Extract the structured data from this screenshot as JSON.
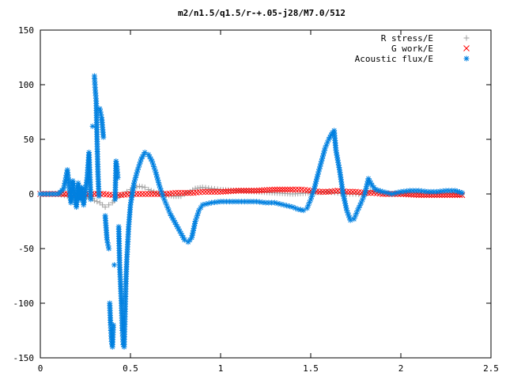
{
  "chart_data": {
    "type": "scatter",
    "title": "m2/n1.5/q1.5/r-+.05-j28/M7.0/512",
    "xlabel": "",
    "ylabel": "",
    "xlim": [
      0,
      2.5
    ],
    "ylim": [
      -150,
      150
    ],
    "x_ticks": [
      "0",
      "0.5",
      "1",
      "1.5",
      "2",
      "2.5"
    ],
    "y_ticks": [
      "150",
      "100",
      "50",
      "0",
      "-50",
      "-100",
      "-150"
    ],
    "grid": false,
    "legend_position": "top-right",
    "series": [
      {
        "name": "R stress/E",
        "marker": "+",
        "color": "#a0a0a0",
        "points": [
          [
            0.0,
            0
          ],
          [
            0.05,
            0
          ],
          [
            0.1,
            0
          ],
          [
            0.15,
            -2
          ],
          [
            0.2,
            -3
          ],
          [
            0.25,
            -4
          ],
          [
            0.28,
            -2
          ],
          [
            0.3,
            -6
          ],
          [
            0.33,
            -8
          ],
          [
            0.36,
            -12
          ],
          [
            0.38,
            -10
          ],
          [
            0.4,
            -8
          ],
          [
            0.42,
            -4
          ],
          [
            0.44,
            -2
          ],
          [
            0.46,
            0
          ],
          [
            0.48,
            2
          ],
          [
            0.5,
            4
          ],
          [
            0.52,
            6
          ],
          [
            0.55,
            7
          ],
          [
            0.58,
            6
          ],
          [
            0.6,
            4
          ],
          [
            0.63,
            2
          ],
          [
            0.66,
            0
          ],
          [
            0.7,
            -1
          ],
          [
            0.74,
            -2
          ],
          [
            0.78,
            -2
          ],
          [
            0.8,
            0
          ],
          [
            0.83,
            2
          ],
          [
            0.86,
            5
          ],
          [
            0.9,
            6
          ],
          [
            0.95,
            5
          ],
          [
            1.0,
            4
          ],
          [
            1.1,
            3
          ],
          [
            1.2,
            2
          ],
          [
            1.3,
            1
          ],
          [
            1.4,
            0
          ],
          [
            1.5,
            1
          ],
          [
            1.6,
            2
          ],
          [
            1.65,
            1
          ],
          [
            1.7,
            0
          ],
          [
            1.75,
            0
          ],
          [
            1.8,
            -1
          ],
          [
            1.83,
            3
          ],
          [
            1.86,
            2
          ],
          [
            1.9,
            1
          ],
          [
            1.95,
            0
          ],
          [
            2.0,
            0
          ],
          [
            2.1,
            0
          ],
          [
            2.2,
            0
          ],
          [
            2.3,
            0
          ],
          [
            2.34,
            0
          ]
        ]
      },
      {
        "name": "G work/E",
        "marker": "x",
        "color": "#ff0000",
        "points": [
          [
            0.0,
            0
          ],
          [
            0.05,
            0
          ],
          [
            0.1,
            0
          ],
          [
            0.15,
            0
          ],
          [
            0.2,
            0
          ],
          [
            0.25,
            0
          ],
          [
            0.3,
            0
          ],
          [
            0.35,
            0
          ],
          [
            0.4,
            -1
          ],
          [
            0.45,
            -1
          ],
          [
            0.5,
            0
          ],
          [
            0.55,
            0
          ],
          [
            0.6,
            0
          ],
          [
            0.65,
            0
          ],
          [
            0.7,
            0
          ],
          [
            0.75,
            1
          ],
          [
            0.8,
            1
          ],
          [
            0.85,
            1
          ],
          [
            0.9,
            2
          ],
          [
            0.95,
            2
          ],
          [
            1.0,
            2
          ],
          [
            1.1,
            3
          ],
          [
            1.2,
            3
          ],
          [
            1.3,
            4
          ],
          [
            1.4,
            4
          ],
          [
            1.45,
            4
          ],
          [
            1.5,
            3
          ],
          [
            1.55,
            2
          ],
          [
            1.6,
            2
          ],
          [
            1.65,
            3
          ],
          [
            1.7,
            2
          ],
          [
            1.75,
            2
          ],
          [
            1.8,
            1
          ],
          [
            1.85,
            1
          ],
          [
            1.9,
            0
          ],
          [
            1.95,
            0
          ],
          [
            2.0,
            0
          ],
          [
            2.1,
            -1
          ],
          [
            2.2,
            -1
          ],
          [
            2.3,
            -1
          ],
          [
            2.34,
            -1
          ]
        ]
      },
      {
        "name": "Acoustic flux/E",
        "marker": "*",
        "color": "#0080e0",
        "points": [
          [
            0.0,
            0
          ],
          [
            0.05,
            0
          ],
          [
            0.1,
            0
          ],
          [
            0.13,
            5
          ],
          [
            0.15,
            22
          ],
          [
            0.17,
            -8
          ],
          [
            0.18,
            12
          ],
          [
            0.2,
            -12
          ],
          [
            0.21,
            10
          ],
          [
            0.22,
            -5
          ],
          [
            0.23,
            6
          ],
          [
            0.24,
            -10
          ],
          [
            0.25,
            2
          ],
          [
            0.26,
            15
          ],
          [
            0.27,
            38
          ],
          [
            0.28,
            -5
          ],
          [
            0.29,
            62
          ],
          [
            0.3,
            108
          ],
          [
            0.305,
            95
          ],
          [
            0.31,
            85
          ],
          [
            0.315,
            48
          ],
          [
            0.32,
            18
          ],
          [
            0.325,
            -2
          ],
          [
            0.33,
            78
          ],
          [
            0.34,
            70
          ],
          [
            0.35,
            52
          ],
          [
            0.36,
            -20
          ],
          [
            0.37,
            -42
          ],
          [
            0.38,
            -50
          ],
          [
            0.385,
            -100
          ],
          [
            0.39,
            -120
          ],
          [
            0.395,
            -135
          ],
          [
            0.4,
            -140
          ],
          [
            0.405,
            -120
          ],
          [
            0.41,
            -65
          ],
          [
            0.415,
            -5
          ],
          [
            0.42,
            30
          ],
          [
            0.425,
            25
          ],
          [
            0.43,
            15
          ],
          [
            0.435,
            -30
          ],
          [
            0.44,
            -65
          ],
          [
            0.45,
            -100
          ],
          [
            0.455,
            -125
          ],
          [
            0.46,
            -138
          ],
          [
            0.465,
            -140
          ],
          [
            0.47,
            -110
          ],
          [
            0.475,
            -80
          ],
          [
            0.48,
            -60
          ],
          [
            0.49,
            -30
          ],
          [
            0.5,
            -10
          ],
          [
            0.52,
            10
          ],
          [
            0.54,
            22
          ],
          [
            0.56,
            32
          ],
          [
            0.58,
            38
          ],
          [
            0.6,
            36
          ],
          [
            0.62,
            30
          ],
          [
            0.64,
            20
          ],
          [
            0.66,
            8
          ],
          [
            0.68,
            -2
          ],
          [
            0.7,
            -10
          ],
          [
            0.72,
            -18
          ],
          [
            0.74,
            -24
          ],
          [
            0.76,
            -30
          ],
          [
            0.78,
            -36
          ],
          [
            0.8,
            -42
          ],
          [
            0.82,
            -44
          ],
          [
            0.84,
            -40
          ],
          [
            0.86,
            -25
          ],
          [
            0.88,
            -15
          ],
          [
            0.9,
            -10
          ],
          [
            0.95,
            -8
          ],
          [
            1.0,
            -7
          ],
          [
            1.05,
            -7
          ],
          [
            1.1,
            -7
          ],
          [
            1.15,
            -7
          ],
          [
            1.2,
            -7
          ],
          [
            1.25,
            -8
          ],
          [
            1.3,
            -8
          ],
          [
            1.35,
            -10
          ],
          [
            1.4,
            -12
          ],
          [
            1.43,
            -14
          ],
          [
            1.46,
            -15
          ],
          [
            1.48,
            -13
          ],
          [
            1.5,
            -5
          ],
          [
            1.52,
            5
          ],
          [
            1.54,
            18
          ],
          [
            1.56,
            30
          ],
          [
            1.58,
            42
          ],
          [
            1.6,
            50
          ],
          [
            1.62,
            56
          ],
          [
            1.63,
            58
          ],
          [
            1.64,
            40
          ],
          [
            1.66,
            22
          ],
          [
            1.68,
            0
          ],
          [
            1.7,
            -15
          ],
          [
            1.72,
            -24
          ],
          [
            1.74,
            -23
          ],
          [
            1.76,
            -15
          ],
          [
            1.78,
            -8
          ],
          [
            1.8,
            0
          ],
          [
            1.82,
            14
          ],
          [
            1.84,
            8
          ],
          [
            1.86,
            4
          ],
          [
            1.9,
            2
          ],
          [
            1.95,
            0
          ],
          [
            2.0,
            2
          ],
          [
            2.05,
            3
          ],
          [
            2.1,
            3
          ],
          [
            2.15,
            2
          ],
          [
            2.2,
            2
          ],
          [
            2.25,
            3
          ],
          [
            2.3,
            3
          ],
          [
            2.34,
            1
          ]
        ]
      }
    ]
  }
}
